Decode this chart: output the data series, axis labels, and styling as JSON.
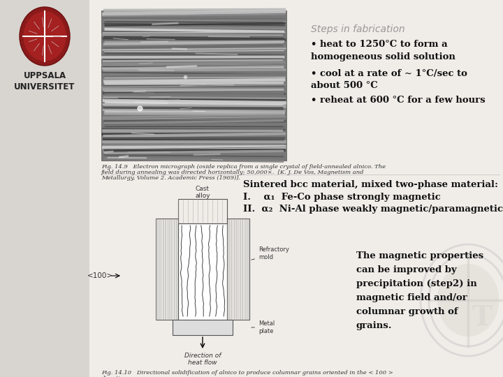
{
  "bg_color": "#f0ede8",
  "sidebar_color": "#d8d5d0",
  "title_text": "Steps in fabrication",
  "title_color": "#999999",
  "title_fontsize": 10,
  "bullet_lines": [
    "• heat to 1250°C to form a\nhomogeneous solid solution",
    "• cool at a rate of ~ 1°C/sec to\nabout 500 °C",
    "• reheat at 600 °C for a few hours"
  ],
  "bullet_color": "#111111",
  "bullet_fontsize": 9.5,
  "sintered_line": "Sintered bcc material, mixed two-phase material:",
  "sintered_items": [
    "I.    α₁  Fe-Co phase strongly magnetic",
    "II.  α₂  Ni-Al phase weakly magnetic/paramagnetic"
  ],
  "sintered_color": "#111111",
  "sintered_fontsize": 9.5,
  "magnetic_text": "The magnetic properties\ncan be improved by\nprecipitation (step2) in\nmagnetic field and/or\ncolumnar growth of\ngrains.",
  "magnetic_color": "#111111",
  "magnetic_fontsize": 9.5,
  "logo_color": "#c0392b",
  "uppsala_text": "UPPSALA\nUNIVERSITET",
  "caption1": "Fig. 14.9   Electron micrograph (oxide replica from a single crystal of field-annealed alnico. The",
  "caption1b": "field during annealing was directed horizontally; 50,000×.  [K. J. De Vos, Magnetism and",
  "caption1c": "Metallurgy, Volume 2. Academic Press (1969)].",
  "caption2": "Fig. 14.10   Directional solidification of alnico to produce columnar grains oriented in the < 100 >",
  "caption2b": "direction.",
  "caption_fontsize": 6.0,
  "caption_color": "#333333"
}
